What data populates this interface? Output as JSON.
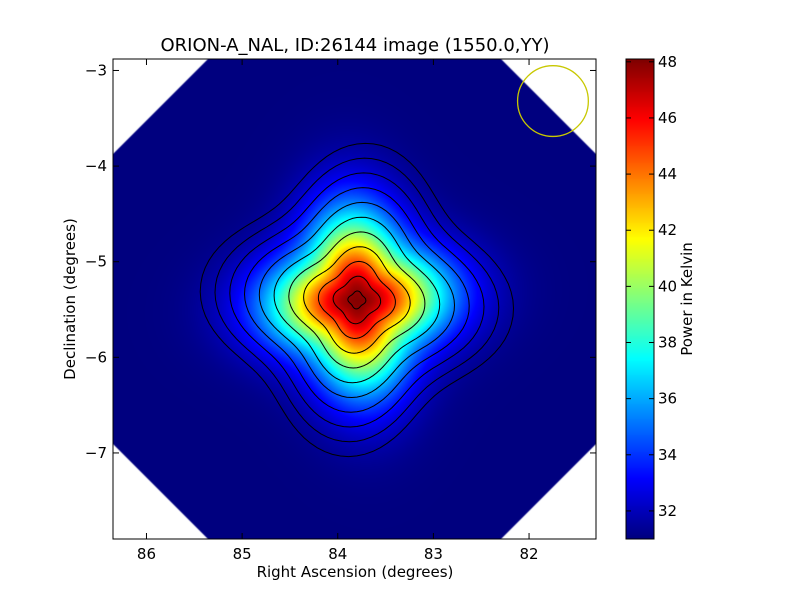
{
  "chart_data": {
    "type": "heatmap",
    "title": "ORION-A_NAL, ID:26144 image (1550.0,YY)",
    "xlabel": "Right Ascension (degrees)",
    "ylabel": "Declination (degrees)",
    "xlim": [
      86.35,
      81.3
    ],
    "ylim": [
      -7.9,
      -2.88
    ],
    "x_ticks": [
      {
        "value": 86,
        "label": "86"
      },
      {
        "value": 85,
        "label": "85"
      },
      {
        "value": 84,
        "label": "84"
      },
      {
        "value": 83,
        "label": "83"
      },
      {
        "value": 82,
        "label": "82"
      }
    ],
    "y_ticks": [
      {
        "value": -3,
        "label": "−3"
      },
      {
        "value": -4,
        "label": "−4"
      },
      {
        "value": -5,
        "label": "−5"
      },
      {
        "value": -6,
        "label": "−6"
      },
      {
        "value": -7,
        "label": "−7"
      }
    ],
    "colorbar": {
      "label": "Power in Kelvin",
      "range": [
        31.0,
        48.1
      ],
      "ticks": [
        {
          "value": 32,
          "label": "32"
        },
        {
          "value": 34,
          "label": "34"
        },
        {
          "value": 36,
          "label": "36"
        },
        {
          "value": 38,
          "label": "38"
        },
        {
          "value": 40,
          "label": "40"
        },
        {
          "value": 42,
          "label": "42"
        },
        {
          "value": 44,
          "label": "44"
        },
        {
          "value": 46,
          "label": "46"
        },
        {
          "value": 48,
          "label": "48"
        }
      ],
      "colormap": [
        "#00007f",
        "#0000ff",
        "#007fff",
        "#00ffff",
        "#7fff7f",
        "#ffff00",
        "#ff7f00",
        "#ff0000",
        "#7f0000"
      ]
    },
    "source": {
      "ra": 83.8,
      "dec": -5.4,
      "peak": 48.0,
      "floor": 31.0,
      "sigma_deg": 0.55
    },
    "contour_count": 11,
    "beam": {
      "ra": 81.75,
      "dec": -3.32,
      "radius_deg": 0.37,
      "color": "#c8c800"
    },
    "grid": false
  }
}
